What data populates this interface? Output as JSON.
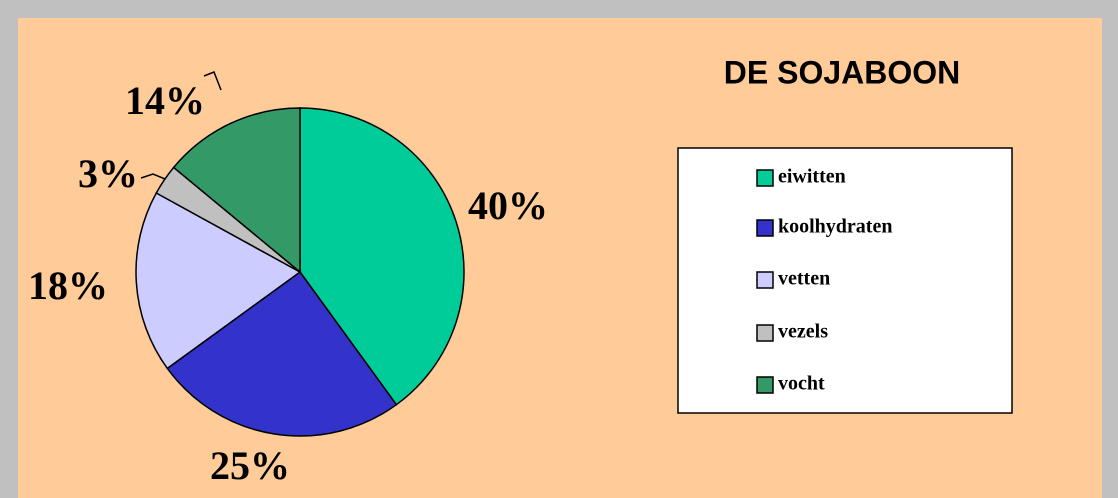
{
  "chart_data": {
    "type": "pie",
    "title": "DE SOJABOON",
    "categories": [
      "eiwitten",
      "koolhydraten",
      "vetten",
      "vezels",
      "vocht"
    ],
    "values": [
      40,
      25,
      18,
      3,
      14
    ],
    "value_labels": [
      "40%",
      "25%",
      "18%",
      "3%",
      "14%"
    ],
    "colors": [
      "#00cc99",
      "#3333cc",
      "#ccccff",
      "#c0c0c0",
      "#339966"
    ]
  }
}
